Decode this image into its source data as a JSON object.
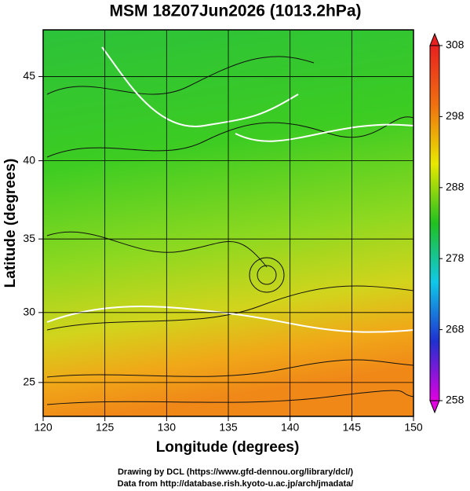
{
  "chart_data": {
    "type": "map",
    "title": "MSM 18Z07Jun2026 (1013.2hPa)",
    "xlabel": "Longitude (degrees)",
    "ylabel": "Latitude  (degrees)",
    "projection": "mercator",
    "xlim": [
      120,
      150
    ],
    "xticks": [
      120,
      125,
      130,
      135,
      140,
      145,
      150
    ],
    "ylim": [
      22.5,
      47.6
    ],
    "yticks": [
      25,
      30,
      35,
      40,
      45
    ],
    "grid": true,
    "colorbar": {
      "lim": [
        258,
        308
      ],
      "ticks": [
        258,
        268,
        278,
        288,
        298,
        308
      ],
      "colors": [
        "#e000e0",
        "#2030d0",
        "#10c8e8",
        "#20c020",
        "#e8e800",
        "#f07010",
        "#e82020"
      ]
    }
  },
  "credits": [
    "Drawing by DCL (https://www.gfd-dennou.org/library/dcl/)",
    "Data from http://database.rish.kyoto-u.ac.jp/arch/jmadata/"
  ]
}
